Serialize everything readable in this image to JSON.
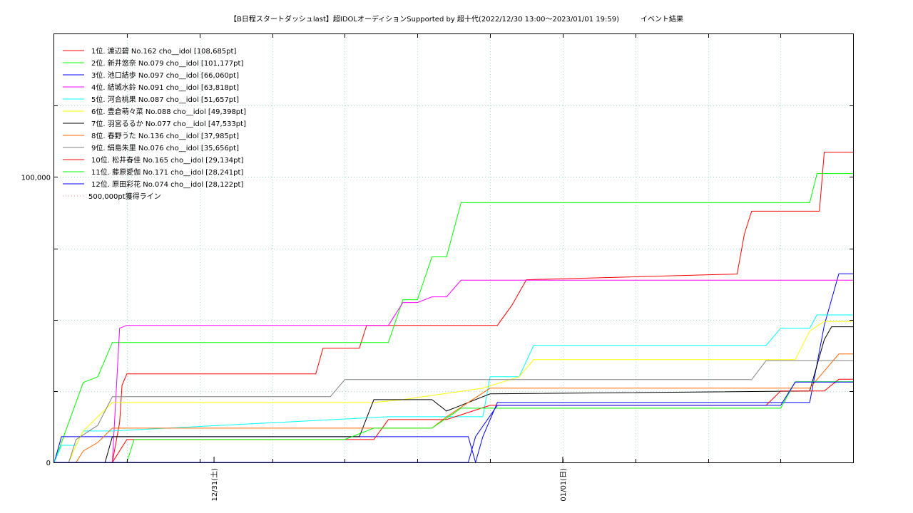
{
  "chart_data": {
    "type": "line",
    "title": "【B日程スタートダッシュlast】超IDOLオーディションSupported by 超十代(2022/12/30 13:00～2023/01/01 19:59)　　　イベント結果",
    "xlabel": "",
    "ylabel": "",
    "x_range": [
      "2022-12-30 13:00",
      "2023-01-01 19:59"
    ],
    "ylim": [
      0,
      150000
    ],
    "y_ticks": [
      0,
      100000
    ],
    "y_tick_labels": [
      "0",
      "100,000"
    ],
    "x_tick_labels": [
      {
        "x": "2022-12-31 00:00",
        "label": "12/31(土)"
      },
      {
        "x": "2023-01-01 00:00",
        "label": "01/01(日)"
      }
    ],
    "grid": true,
    "legend_position": "top-left",
    "series": [
      {
        "name": "1位. 渡辺碧 No.162 cho__idol [108,685pt]",
        "color": "#ff0000",
        "points": [
          [
            "2022-12-30 13:00",
            0
          ],
          [
            "2022-12-30 17:00",
            0
          ],
          [
            "2022-12-30 17:30",
            14000
          ],
          [
            "2022-12-30 17:40",
            27000
          ],
          [
            "2022-12-30 18:00",
            31000
          ],
          [
            "2022-12-31 07:00",
            31000
          ],
          [
            "2022-12-31 07:30",
            40000
          ],
          [
            "2022-12-31 10:00",
            40000
          ],
          [
            "2022-12-31 10:30",
            48000
          ],
          [
            "2022-12-31 19:30",
            48000
          ],
          [
            "2022-12-31 20:30",
            55000
          ],
          [
            "2022-12-31 21:30",
            64000
          ],
          [
            "2023-01-01 12:00",
            66000
          ],
          [
            "2023-01-01 12:30",
            80000
          ],
          [
            "2023-01-01 13:00",
            88000
          ],
          [
            "2023-01-01 17:40",
            88000
          ],
          [
            "2023-01-01 18:00",
            108685
          ],
          [
            "2023-01-01 19:59",
            108685
          ]
        ]
      },
      {
        "name": "2位. 新井悠奈 No.079 cho__idol [101,177pt]",
        "color": "#00ff00",
        "points": [
          [
            "2022-12-30 13:00",
            0
          ],
          [
            "2022-12-30 14:00",
            14000
          ],
          [
            "2022-12-30 15:00",
            28000
          ],
          [
            "2022-12-30 16:00",
            30000
          ],
          [
            "2022-12-30 17:00",
            42000
          ],
          [
            "2022-12-31 12:00",
            42000
          ],
          [
            "2022-12-31 13:00",
            57000
          ],
          [
            "2022-12-31 14:00",
            57000
          ],
          [
            "2022-12-31 15:00",
            72000
          ],
          [
            "2022-12-31 16:00",
            72000
          ],
          [
            "2022-12-31 17:00",
            91000
          ],
          [
            "2023-01-01 17:00",
            91000
          ],
          [
            "2023-01-01 17:30",
            101177
          ],
          [
            "2023-01-01 19:59",
            101177
          ]
        ]
      },
      {
        "name": "3位. 池口結歩 No.097 cho__idol [66,060pt]",
        "color": "#0000ff",
        "points": [
          [
            "2022-12-30 13:00",
            0
          ],
          [
            "2022-12-30 13:30",
            9000
          ],
          [
            "2022-12-31 17:30",
            9000
          ],
          [
            "2022-12-31 18:00",
            0
          ],
          [
            "2022-12-31 18:30",
            9000
          ],
          [
            "2022-12-31 19:30",
            21000
          ],
          [
            "2023-01-01 17:00",
            21000
          ],
          [
            "2023-01-01 18:00",
            48000
          ],
          [
            "2023-01-01 19:00",
            66060
          ],
          [
            "2023-01-01 19:59",
            66060
          ]
        ]
      },
      {
        "name": "4位. 結城水鈴 No.091 cho__idol [63,818pt]",
        "color": "#ff00ff",
        "points": [
          [
            "2022-12-30 13:00",
            0
          ],
          [
            "2022-12-30 15:00",
            0
          ],
          [
            "2022-12-30 17:00",
            0
          ],
          [
            "2022-12-30 17:30",
            47000
          ],
          [
            "2022-12-30 18:00",
            48000
          ],
          [
            "2022-12-31 12:00",
            48000
          ],
          [
            "2022-12-31 13:00",
            56000
          ],
          [
            "2022-12-31 14:00",
            56000
          ],
          [
            "2022-12-31 15:00",
            58000
          ],
          [
            "2022-12-31 16:00",
            58000
          ],
          [
            "2022-12-31 17:00",
            63818
          ],
          [
            "2023-01-01 19:59",
            63818
          ]
        ]
      },
      {
        "name": "5位. 河合桃果 No.087 cho__idol [51,657pt]",
        "color": "#00ffff",
        "points": [
          [
            "2022-12-30 13:00",
            0
          ],
          [
            "2022-12-30 13:30",
            6000
          ],
          [
            "2022-12-30 14:30",
            6000
          ],
          [
            "2022-12-30 15:00",
            11000
          ],
          [
            "2022-12-30 17:00",
            11000
          ],
          [
            "2022-12-31 12:00",
            16000
          ],
          [
            "2022-12-31 18:30",
            16000
          ],
          [
            "2022-12-31 19:00",
            30000
          ],
          [
            "2022-12-31 21:00",
            30000
          ],
          [
            "2022-12-31 22:00",
            41000
          ],
          [
            "2023-01-01 14:00",
            41000
          ],
          [
            "2023-01-01 15:00",
            47000
          ],
          [
            "2023-01-01 17:00",
            47000
          ],
          [
            "2023-01-01 17:30",
            51657
          ],
          [
            "2023-01-01 19:59",
            51657
          ]
        ]
      },
      {
        "name": "6位. 豊倉萌々菜 No.088 cho__idol [49,398pt]",
        "color": "#ffff00",
        "points": [
          [
            "2022-12-30 13:00",
            0
          ],
          [
            "2022-12-30 14:00",
            0
          ],
          [
            "2022-12-30 14:30",
            6000
          ],
          [
            "2022-12-30 15:00",
            11000
          ],
          [
            "2022-12-30 16:00",
            16000
          ],
          [
            "2022-12-30 17:00",
            21000
          ],
          [
            "2022-12-31 11:00",
            21000
          ],
          [
            "2022-12-31 13:00",
            22000
          ],
          [
            "2022-12-31 18:30",
            26000
          ],
          [
            "2022-12-31 21:00",
            30000
          ],
          [
            "2022-12-31 22:00",
            36000
          ],
          [
            "2023-01-01 16:00",
            36000
          ],
          [
            "2023-01-01 17:00",
            46000
          ],
          [
            "2023-01-01 18:00",
            49398
          ],
          [
            "2023-01-01 19:59",
            49398
          ]
        ]
      },
      {
        "name": "7位. 羽宮るるか No.077 cho__idol [47,533pt]",
        "color": "#000000",
        "points": [
          [
            "2022-12-30 13:00",
            0
          ],
          [
            "2022-12-30 16:30",
            0
          ],
          [
            "2022-12-30 17:00",
            9000
          ],
          [
            "2022-12-31 10:00",
            9000
          ],
          [
            "2022-12-31 11:00",
            22000
          ],
          [
            "2022-12-31 15:00",
            22000
          ],
          [
            "2022-12-31 16:00",
            18000
          ],
          [
            "2022-12-31 19:00",
            24000
          ],
          [
            "2023-01-01 17:00",
            25000
          ],
          [
            "2023-01-01 18:00",
            43000
          ],
          [
            "2023-01-01 18:30",
            47533
          ],
          [
            "2023-01-01 19:59",
            47533
          ]
        ]
      },
      {
        "name": "8位. 春野うた No.136 cho__idol [37,985pt]",
        "color": "#ff6600",
        "points": [
          [
            "2022-12-30 13:00",
            0
          ],
          [
            "2022-12-30 14:30",
            0
          ],
          [
            "2022-12-30 15:00",
            4000
          ],
          [
            "2022-12-30 16:00",
            7000
          ],
          [
            "2022-12-30 17:00",
            12000
          ],
          [
            "2022-12-31 15:00",
            12000
          ],
          [
            "2022-12-31 16:00",
            16000
          ],
          [
            "2022-12-31 19:00",
            26000
          ],
          [
            "2023-01-01 17:00",
            26000
          ],
          [
            "2023-01-01 18:30",
            35000
          ],
          [
            "2023-01-01 19:00",
            37985
          ],
          [
            "2023-01-01 19:59",
            37985
          ]
        ]
      },
      {
        "name": "9位. 絹島朱里 No.076 cho__idol [35,656pt]",
        "color": "#808080",
        "points": [
          [
            "2022-12-30 13:00",
            0
          ],
          [
            "2022-12-30 14:00",
            0
          ],
          [
            "2022-12-30 14:30",
            8000
          ],
          [
            "2022-12-30 16:00",
            13000
          ],
          [
            "2022-12-30 17:00",
            23000
          ],
          [
            "2022-12-31 08:00",
            23000
          ],
          [
            "2022-12-31 09:00",
            29000
          ],
          [
            "2022-12-31 18:30",
            29000
          ],
          [
            "2022-12-31 19:00",
            29000
          ],
          [
            "2023-01-01 13:00",
            29000
          ],
          [
            "2023-01-01 14:00",
            35656
          ],
          [
            "2023-01-01 19:59",
            35656
          ]
        ]
      },
      {
        "name": "10位. 松井春佳 No.165 cho__idol [29,134pt]",
        "color": "#ff0000",
        "points": [
          [
            "2022-12-30 13:00",
            0
          ],
          [
            "2022-12-30 17:00",
            0
          ],
          [
            "2022-12-30 18:00",
            8000
          ],
          [
            "2022-12-31 11:00",
            8000
          ],
          [
            "2022-12-31 12:00",
            15000
          ],
          [
            "2022-12-31 16:00",
            15000
          ],
          [
            "2022-12-31 19:00",
            20000
          ],
          [
            "2023-01-01 14:00",
            20000
          ],
          [
            "2023-01-01 15:00",
            25000
          ],
          [
            "2023-01-01 18:00",
            25000
          ],
          [
            "2023-01-01 19:00",
            29134
          ],
          [
            "2023-01-01 19:59",
            29134
          ]
        ]
      },
      {
        "name": "11位. 藤原愛伽 No.171 cho__idol [28,241pt]",
        "color": "#00ff00",
        "points": [
          [
            "2022-12-30 13:00",
            0
          ],
          [
            "2022-12-30 18:00",
            0
          ],
          [
            "2022-12-30 18:30",
            8000
          ],
          [
            "2022-12-31 09:00",
            8000
          ],
          [
            "2022-12-31 11:00",
            12000
          ],
          [
            "2022-12-31 15:00",
            12000
          ],
          [
            "2022-12-31 17:00",
            19000
          ],
          [
            "2023-01-01 15:00",
            19000
          ],
          [
            "2023-01-01 16:00",
            28241
          ],
          [
            "2023-01-01 19:59",
            28241
          ]
        ]
      },
      {
        "name": "12位. 原田彩花 No.074 cho__idol [28,122pt]",
        "color": "#0000ff",
        "points": [
          [
            "2022-12-30 13:00",
            0
          ],
          [
            "2022-12-31 17:30",
            0
          ],
          [
            "2022-12-31 18:00",
            9000
          ],
          [
            "2022-12-31 19:30",
            20000
          ],
          [
            "2023-01-01 15:00",
            20000
          ],
          [
            "2023-01-01 16:00",
            28122
          ],
          [
            "2023-01-01 19:59",
            28122
          ]
        ]
      },
      {
        "name": "500,000pt獲得ライン",
        "color": "#ff8080",
        "dashed": true,
        "points": []
      }
    ]
  }
}
